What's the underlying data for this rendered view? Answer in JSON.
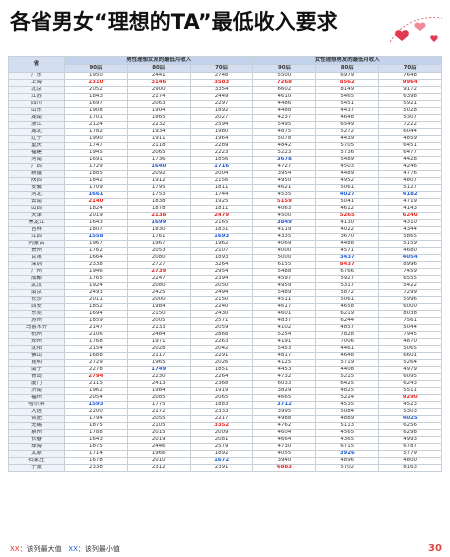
{
  "title": "各省男女“理想的TA”最低收入要求",
  "table": {
    "header": {
      "province": "省",
      "groups": [
        "男性理想女友的最低月收入",
        "女性理想男友的最低月收入"
      ],
      "generations": [
        "90后",
        "80后",
        "70后",
        "90后",
        "80后",
        "70后"
      ]
    },
    "max_color": "#e8251f",
    "min_color": "#1f5bd6",
    "groups": [
      {
        "rows": [
          [
            "广东",
            1950,
            2441,
            2748,
            5500,
            6979,
            7648
          ],
          [
            "上海",
            2310,
            3146,
            3583,
            7268,
            8562,
            9964
          ],
          [
            "北京",
            2052,
            2900,
            3354,
            6602,
            8149,
            9172
          ],
          [
            "江苏",
            1843,
            2174,
            2449,
            4610,
            5465,
            6398
          ],
          [
            "四川",
            1697,
            2063,
            2297,
            4486,
            5451,
            5921
          ],
          [
            "山东",
            1908,
            1904,
            1892,
            4488,
            4437,
            5028
          ],
          [
            "湖南",
            1701,
            1865,
            2027,
            4237,
            4648,
            5307
          ],
          [
            "浙江",
            2124,
            2232,
            2594,
            5495,
            6549,
            7222
          ],
          [
            "湖北",
            1782,
            1934,
            1980,
            4875,
            5272,
            6044
          ],
          [
            "辽宁",
            1990,
            1911,
            1964,
            5078,
            4439,
            4859
          ],
          [
            "重庆",
            1747,
            2118,
            2289,
            4842,
            5705,
            6451
          ],
          [
            "福建",
            1945,
            2065,
            2223,
            5223,
            5736,
            6477
          ],
          [
            "河南",
            1691,
            1736,
            1856,
            3678,
            5489,
            4428
          ],
          [
            "广西",
            1729,
            1640,
            1716,
            4727,
            4503,
            4246
          ],
          [
            "新疆",
            1885,
            2092,
            2004,
            3954,
            4489,
            4776
          ],
          [
            "陕西",
            1842,
            1912,
            2156,
            4950,
            4952,
            4807
          ],
          [
            "安徽",
            1709,
            1795,
            1811,
            4621,
            5061,
            5127
          ],
          [
            "河北",
            1661,
            1753,
            1744,
            4535,
            4027,
            4182
          ]
        ]
      },
      {
        "rows": [
          [
            "云南",
            2140,
            1838,
            1925,
            5159,
            5041,
            4719
          ],
          [
            "山西",
            1824,
            1878,
            1811,
            4063,
            4612,
            4143
          ],
          [
            "天津",
            2019,
            2138,
            2479,
            4500,
            5265,
            6240
          ],
          [
            "黑龙江",
            1643,
            1699,
            2165,
            3849,
            4130,
            4310
          ],
          [
            "吉林",
            1807,
            1830,
            1831,
            4119,
            4022,
            4344
          ],
          [
            "江西",
            1558,
            1761,
            1693,
            4335,
            3670,
            5865
          ],
          [
            "内蒙古",
            1967,
            1967,
            1962,
            4069,
            4488,
            5159
          ],
          [
            "贵州",
            1762,
            2053,
            2107,
            4000,
            4571,
            4680
          ],
          [
            "甘肃",
            1664,
            2080,
            1893,
            5000,
            3437,
            4054
          ]
        ]
      },
      {
        "rows": [
          [
            "深圳",
            2338,
            2727,
            3264,
            6155,
            8437,
            8996
          ],
          [
            "广州",
            1946,
            2739,
            2954,
            5488,
            6766,
            7459
          ],
          [
            "成都",
            1765,
            2247,
            2394,
            4597,
            5927,
            6555
          ],
          [
            "武汉",
            1924,
            2080,
            2050,
            4959,
            5317,
            5422
          ],
          [
            "南京",
            2493,
            2425,
            2494,
            5489,
            5872,
            7299
          ],
          [
            "长沙",
            2011,
            2000,
            2150,
            4511,
            5061,
            5996
          ],
          [
            "西安",
            1852,
            1984,
            2240,
            4617,
            4658,
            6000
          ],
          [
            "东莞",
            1694,
            2150,
            2430,
            4601,
            6219,
            8038
          ],
          [
            "苏州",
            1859,
            2005,
            2571,
            4837,
            6244,
            7561
          ],
          [
            "乌鲁木齐",
            2147,
            2133,
            2059,
            4102,
            4857,
            5044
          ],
          [
            "杭州",
            2106,
            2484,
            2868,
            5254,
            7828,
            7945
          ],
          [
            "郑州",
            1768,
            1971,
            2263,
            4191,
            7006,
            4870
          ],
          [
            "沈阳",
            2154,
            2028,
            2042,
            5453,
            4461,
            5065
          ],
          [
            "佛山",
            1688,
            2117,
            2291,
            4817,
            4648,
            6601
          ],
          [
            "昆明",
            2729,
            1965,
            2026,
            4125,
            5719,
            5264
          ],
          [
            "南宁",
            2278,
            1749,
            1851,
            4453,
            4408,
            4979
          ],
          [
            "青岛",
            2794,
            2230,
            2264,
            4732,
            5215,
            6095
          ],
          [
            "厦门",
            2115,
            2413,
            2368,
            6033,
            6425,
            6243
          ],
          [
            "济南",
            1962,
            1984,
            1919,
            3829,
            4825,
            5511
          ],
          [
            "福州",
            2054,
            2085,
            2065,
            4665,
            5224,
            9290
          ],
          [
            "哈尔滨",
            1593,
            1775,
            1883,
            3712,
            4535,
            4523
          ],
          [
            "大连",
            2200,
            2172,
            2333,
            3995,
            5084,
            5303
          ],
          [
            "合肥",
            1794,
            2055,
            2217,
            4988,
            4889,
            4025
          ],
          [
            "无锡",
            1875,
            2105,
            3352,
            4762,
            5113,
            6256
          ],
          [
            "泉州",
            1788,
            2015,
            2009,
            4604,
            4565,
            6298
          ],
          [
            "长春",
            1643,
            2019,
            2081,
            4664,
            4365,
            4993
          ],
          [
            "珠海",
            1875,
            2446,
            2579,
            4730,
            6715,
            6787
          ],
          [
            "太原",
            1714,
            1966,
            1892,
            4055,
            3926,
            5779
          ],
          [
            "石家庄",
            1678,
            2010,
            1672,
            3940,
            4896,
            4800
          ],
          [
            "宁波",
            2338,
            2312,
            2391,
            6883,
            5702,
            8163
          ]
        ]
      }
    ]
  },
  "legend": {
    "max_mark": "XX",
    "max_text": "：该列最大值",
    "min_mark": "XX",
    "min_text": "：该列最小值"
  },
  "page_number": "30"
}
